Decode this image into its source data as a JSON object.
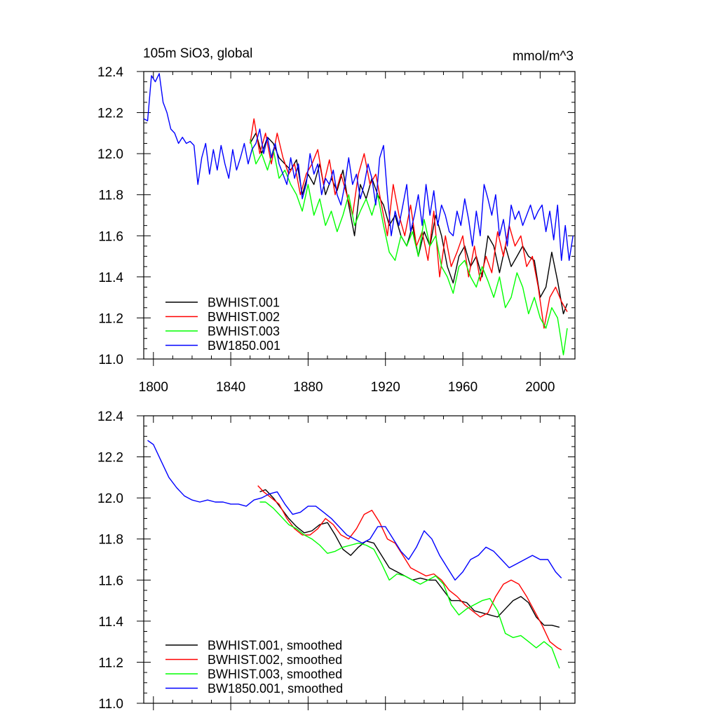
{
  "chart_data": [
    {
      "type": "line",
      "title": "105m SiO3, global",
      "units": "mmol/m^3",
      "xlim": [
        1795,
        2018
      ],
      "ylim": [
        11.0,
        12.4
      ],
      "xticks": [
        1800,
        1840,
        1880,
        1920,
        1960,
        2000
      ],
      "xtick_labels": [
        "1800",
        "1840",
        "1880",
        "1920",
        "1960",
        "2000"
      ],
      "yticks": [
        11.0,
        11.2,
        11.4,
        11.6,
        11.8,
        12.0,
        12.2,
        12.4
      ],
      "ytick_labels": [
        "11.0",
        "11.2",
        "11.4",
        "11.6",
        "11.8",
        "12.0",
        "12.2",
        "12.4"
      ],
      "legend_position": "bottom-left",
      "series": [
        {
          "name": "BWHIST.001",
          "color": "#000000",
          "x": [
            1850,
            1853,
            1856,
            1859,
            1862,
            1865,
            1868,
            1871,
            1874,
            1877,
            1880,
            1883,
            1886,
            1889,
            1892,
            1895,
            1898,
            1901,
            1904,
            1907,
            1910,
            1913,
            1916,
            1919,
            1922,
            1925,
            1928,
            1931,
            1934,
            1937,
            1940,
            1943,
            1946,
            1949,
            1952,
            1955,
            1958,
            1961,
            1964,
            1967,
            1970,
            1973,
            1976,
            1979,
            1982,
            1985,
            1988,
            1991,
            1994,
            1997,
            2000,
            2003,
            2006,
            2009,
            2012,
            2014
          ],
          "y": [
            12.05,
            12.1,
            12.0,
            12.08,
            12.05,
            11.98,
            11.95,
            11.92,
            11.97,
            11.8,
            11.9,
            11.85,
            11.95,
            11.8,
            11.88,
            11.82,
            11.92,
            11.75,
            11.6,
            11.85,
            11.78,
            11.88,
            11.8,
            11.75,
            11.65,
            11.7,
            11.6,
            11.55,
            11.65,
            11.5,
            11.62,
            11.55,
            11.7,
            11.6,
            11.45,
            11.37,
            11.5,
            11.55,
            11.45,
            11.5,
            11.4,
            11.6,
            11.55,
            11.42,
            11.55,
            11.45,
            11.5,
            11.55,
            11.5,
            11.48,
            11.3,
            11.35,
            11.52,
            11.38,
            11.22,
            11.27
          ]
        },
        {
          "name": "BWHIST.002",
          "color": "#ff0000",
          "x": [
            1850,
            1852,
            1855,
            1858,
            1861,
            1864,
            1867,
            1870,
            1873,
            1876,
            1879,
            1882,
            1885,
            1888,
            1891,
            1894,
            1897,
            1900,
            1903,
            1906,
            1909,
            1912,
            1915,
            1918,
            1921,
            1924,
            1927,
            1930,
            1933,
            1936,
            1939,
            1942,
            1945,
            1948,
            1951,
            1954,
            1957,
            1960,
            1963,
            1966,
            1969,
            1972,
            1975,
            1978,
            1981,
            1984,
            1987,
            1990,
            1993,
            1996,
            1999,
            2002,
            2005,
            2008,
            2011,
            2014
          ],
          "y": [
            12.05,
            12.17,
            12.0,
            12.1,
            11.95,
            12.1,
            11.98,
            11.9,
            11.95,
            11.8,
            11.9,
            11.95,
            12.02,
            11.85,
            11.97,
            11.8,
            11.9,
            11.8,
            11.7,
            11.9,
            12.0,
            11.85,
            11.9,
            11.75,
            11.6,
            11.85,
            11.7,
            11.6,
            11.75,
            11.55,
            11.62,
            11.48,
            11.72,
            11.4,
            11.6,
            11.45,
            11.52,
            11.6,
            11.4,
            11.55,
            11.38,
            11.5,
            11.42,
            11.62,
            11.5,
            11.65,
            11.55,
            11.6,
            11.45,
            11.5,
            11.35,
            11.15,
            11.3,
            11.35,
            11.28,
            11.23
          ]
        },
        {
          "name": "BWHIST.003",
          "color": "#00ff00",
          "x": [
            1850,
            1853,
            1856,
            1859,
            1862,
            1865,
            1868,
            1871,
            1874,
            1877,
            1880,
            1883,
            1886,
            1889,
            1892,
            1895,
            1898,
            1901,
            1904,
            1907,
            1910,
            1913,
            1916,
            1919,
            1922,
            1925,
            1928,
            1931,
            1934,
            1937,
            1940,
            1943,
            1946,
            1949,
            1952,
            1955,
            1958,
            1961,
            1964,
            1967,
            1970,
            1973,
            1976,
            1979,
            1982,
            1985,
            1988,
            1991,
            1994,
            1997,
            2000,
            2003,
            2006,
            2009,
            2012,
            2014
          ],
          "y": [
            12.07,
            11.95,
            12.0,
            11.92,
            12.02,
            11.88,
            11.92,
            11.85,
            11.8,
            11.72,
            11.85,
            11.7,
            11.78,
            11.65,
            11.72,
            11.62,
            11.7,
            11.8,
            11.65,
            11.72,
            11.78,
            11.7,
            11.8,
            11.65,
            11.52,
            11.48,
            11.6,
            11.55,
            11.62,
            11.5,
            11.68,
            11.55,
            11.6,
            11.45,
            11.4,
            11.32,
            11.45,
            11.48,
            11.4,
            11.35,
            11.45,
            11.38,
            11.3,
            11.4,
            11.25,
            11.3,
            11.42,
            11.35,
            11.22,
            11.3,
            11.2,
            11.15,
            11.25,
            11.2,
            11.02,
            11.15
          ]
        },
        {
          "name": "BW1850.001",
          "color": "#0000ff",
          "x": [
            1795,
            1797,
            1799,
            1801,
            1803,
            1805,
            1807,
            1809,
            1811,
            1813,
            1815,
            1817,
            1819,
            1821,
            1823,
            1825,
            1827,
            1829,
            1831,
            1833,
            1835,
            1837,
            1839,
            1841,
            1843,
            1845,
            1847,
            1849,
            1851,
            1853,
            1855,
            1857,
            1859,
            1861,
            1863,
            1865,
            1867,
            1869,
            1871,
            1873,
            1875,
            1877,
            1879,
            1881,
            1883,
            1885,
            1887,
            1889,
            1891,
            1893,
            1895,
            1897,
            1899,
            1901,
            1903,
            1905,
            1907,
            1909,
            1911,
            1913,
            1915,
            1917,
            1919,
            1921,
            1923,
            1925,
            1927,
            1929,
            1931,
            1933,
            1935,
            1937,
            1939,
            1941,
            1943,
            1945,
            1947,
            1949,
            1951,
            1953,
            1955,
            1957,
            1959,
            1961,
            1963,
            1965,
            1967,
            1969,
            1971,
            1973,
            1975,
            1977,
            1979,
            1981,
            1983,
            1985,
            1987,
            1989,
            1991,
            1993,
            1995,
            1997,
            1999,
            2001,
            2003,
            2005,
            2007,
            2009,
            2011,
            2013,
            2015,
            2017
          ],
          "y": [
            12.17,
            12.16,
            12.38,
            12.35,
            12.39,
            12.25,
            12.2,
            12.12,
            12.1,
            12.05,
            12.08,
            12.05,
            12.06,
            12.04,
            11.85,
            11.98,
            12.05,
            11.9,
            12.02,
            11.92,
            12.04,
            11.95,
            11.88,
            12.02,
            11.92,
            11.98,
            12.05,
            11.95,
            12.02,
            12.05,
            12.12,
            12.0,
            12.08,
            11.98,
            12.05,
            11.95,
            11.9,
            11.85,
            11.98,
            11.88,
            11.95,
            11.78,
            11.85,
            12.0,
            11.9,
            11.95,
            11.8,
            11.88,
            11.85,
            11.92,
            11.8,
            11.75,
            11.85,
            11.98,
            11.85,
            11.9,
            11.78,
            11.85,
            11.95,
            11.88,
            11.75,
            11.98,
            12.04,
            11.8,
            11.6,
            11.72,
            11.65,
            11.75,
            11.85,
            11.62,
            11.7,
            11.8,
            11.65,
            11.85,
            11.7,
            11.82,
            11.65,
            11.75,
            11.7,
            11.62,
            11.6,
            11.72,
            11.65,
            11.78,
            11.68,
            11.55,
            11.72,
            11.6,
            11.85,
            11.78,
            11.7,
            11.8,
            11.6,
            11.68,
            11.55,
            11.75,
            11.68,
            11.72,
            11.65,
            11.7,
            11.75,
            11.68,
            11.72,
            11.75,
            11.62,
            11.72,
            11.58,
            11.75,
            11.48,
            11.65,
            11.48,
            11.6
          ]
        }
      ]
    },
    {
      "type": "line",
      "xlim": [
        1795,
        2018
      ],
      "ylim": [
        11.0,
        12.4
      ],
      "xticks": [
        1800,
        1840,
        1880,
        1920,
        1960,
        2000
      ],
      "yticks": [
        11.0,
        11.2,
        11.4,
        11.6,
        11.8,
        12.0,
        12.2,
        12.4
      ],
      "ytick_labels": [
        "11.0",
        "11.2",
        "11.4",
        "11.6",
        "11.8",
        "12.0",
        "12.2",
        "12.4"
      ],
      "legend_position": "bottom-left",
      "series": [
        {
          "name": "BWHIST.001, smoothed",
          "color": "#000000",
          "x": [
            1855,
            1858,
            1862,
            1866,
            1870,
            1874,
            1878,
            1882,
            1886,
            1890,
            1894,
            1898,
            1902,
            1906,
            1910,
            1914,
            1918,
            1922,
            1926,
            1930,
            1934,
            1938,
            1942,
            1946,
            1950,
            1954,
            1958,
            1962,
            1966,
            1970,
            1974,
            1978,
            1982,
            1986,
            1990,
            1994,
            1998,
            2002,
            2006,
            2010
          ],
          "y": [
            12.03,
            12.04,
            12.0,
            11.95,
            11.9,
            11.86,
            11.83,
            11.84,
            11.87,
            11.88,
            11.82,
            11.75,
            11.72,
            11.76,
            11.79,
            11.78,
            11.72,
            11.66,
            11.64,
            11.62,
            11.6,
            11.61,
            11.6,
            11.6,
            11.55,
            11.5,
            11.5,
            11.49,
            11.45,
            11.44,
            11.43,
            11.42,
            11.46,
            11.5,
            11.52,
            11.49,
            11.42,
            11.38,
            11.38,
            11.37
          ]
        },
        {
          "name": "BWHIST.002, smoothed",
          "color": "#ff0000",
          "x": [
            1854,
            1857,
            1861,
            1865,
            1869,
            1873,
            1877,
            1881,
            1885,
            1889,
            1893,
            1897,
            1901,
            1905,
            1909,
            1913,
            1917,
            1921,
            1925,
            1929,
            1933,
            1937,
            1941,
            1945,
            1949,
            1953,
            1957,
            1961,
            1965,
            1969,
            1973,
            1977,
            1981,
            1985,
            1989,
            1993,
            1997,
            2001,
            2005,
            2009,
            2011
          ],
          "y": [
            12.06,
            12.03,
            12.0,
            11.97,
            11.9,
            11.85,
            11.82,
            11.82,
            11.85,
            11.9,
            11.87,
            11.82,
            11.8,
            11.85,
            11.92,
            11.94,
            11.88,
            11.8,
            11.78,
            11.72,
            11.66,
            11.64,
            11.62,
            11.63,
            11.6,
            11.55,
            11.52,
            11.48,
            11.45,
            11.42,
            11.44,
            11.52,
            11.58,
            11.6,
            11.58,
            11.52,
            11.45,
            11.38,
            11.3,
            11.27,
            11.26
          ]
        },
        {
          "name": "BWHIST.003, smoothed",
          "color": "#00ff00",
          "x": [
            1855,
            1858,
            1862,
            1866,
            1870,
            1874,
            1878,
            1882,
            1886,
            1890,
            1894,
            1898,
            1902,
            1906,
            1910,
            1914,
            1918,
            1922,
            1926,
            1930,
            1934,
            1938,
            1942,
            1946,
            1950,
            1954,
            1958,
            1962,
            1966,
            1970,
            1974,
            1978,
            1982,
            1986,
            1990,
            1994,
            1998,
            2002,
            2006,
            2010
          ],
          "y": [
            11.98,
            11.98,
            11.95,
            11.91,
            11.87,
            11.85,
            11.82,
            11.8,
            11.77,
            11.73,
            11.74,
            11.76,
            11.77,
            11.78,
            11.77,
            11.75,
            11.68,
            11.6,
            11.63,
            11.62,
            11.6,
            11.58,
            11.6,
            11.62,
            11.58,
            11.48,
            11.43,
            11.46,
            11.48,
            11.5,
            11.51,
            11.45,
            11.34,
            11.32,
            11.33,
            11.3,
            11.27,
            11.3,
            11.27,
            11.17
          ]
        },
        {
          "name": "BW1850.001, smoothed",
          "color": "#0000ff",
          "x": [
            1797,
            1800,
            1804,
            1808,
            1812,
            1816,
            1820,
            1824,
            1828,
            1832,
            1836,
            1840,
            1844,
            1848,
            1852,
            1856,
            1860,
            1864,
            1868,
            1872,
            1876,
            1880,
            1884,
            1888,
            1892,
            1896,
            1900,
            1904,
            1908,
            1912,
            1916,
            1920,
            1924,
            1928,
            1932,
            1936,
            1940,
            1944,
            1948,
            1952,
            1956,
            1960,
            1964,
            1968,
            1972,
            1976,
            1980,
            1984,
            1988,
            1992,
            1996,
            2000,
            2004,
            2008,
            2011
          ],
          "y": [
            12.28,
            12.26,
            12.18,
            12.1,
            12.05,
            12.01,
            11.99,
            11.98,
            11.99,
            11.98,
            11.98,
            11.97,
            11.97,
            11.96,
            11.99,
            12.0,
            12.02,
            12.03,
            11.97,
            11.92,
            11.93,
            11.96,
            11.96,
            11.93,
            11.9,
            11.86,
            11.82,
            11.8,
            11.78,
            11.8,
            11.86,
            11.86,
            11.8,
            11.74,
            11.7,
            11.76,
            11.84,
            11.8,
            11.72,
            11.66,
            11.6,
            11.64,
            11.7,
            11.72,
            11.76,
            11.74,
            11.7,
            11.66,
            11.68,
            11.7,
            11.72,
            11.7,
            11.7,
            11.64,
            11.61
          ]
        }
      ]
    }
  ]
}
